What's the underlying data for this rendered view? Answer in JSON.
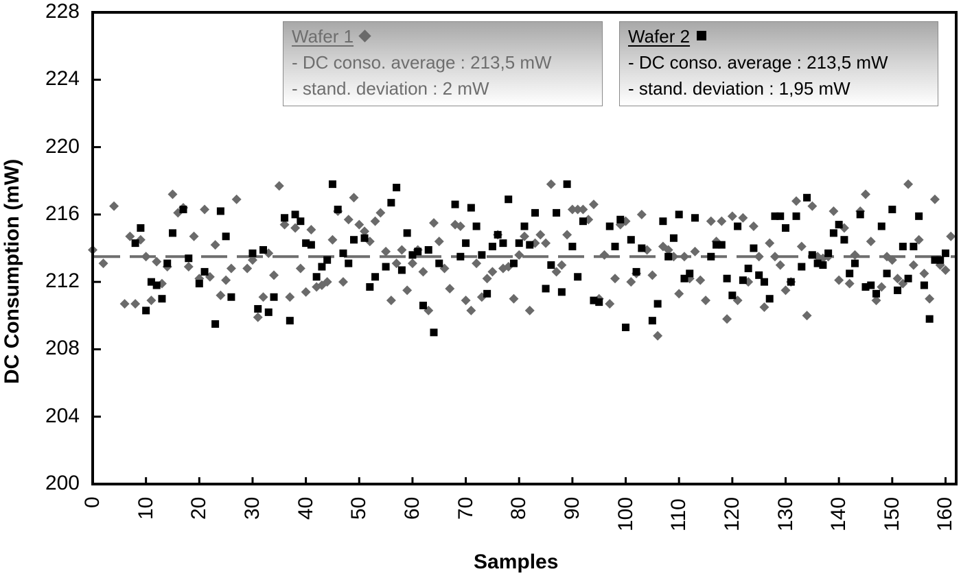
{
  "chart_data": {
    "type": "scatter",
    "title": "",
    "xlabel": "Samples",
    "ylabel": "DC Consumption (mW)",
    "xlim": [
      0,
      162
    ],
    "ylim": [
      200,
      228
    ],
    "x_ticks": [
      0,
      10,
      20,
      30,
      40,
      50,
      60,
      70,
      80,
      90,
      100,
      110,
      120,
      130,
      140,
      150,
      160
    ],
    "y_ticks": [
      200,
      204,
      208,
      212,
      216,
      220,
      224,
      228
    ],
    "grid": false,
    "reference_line": {
      "y": 213.5,
      "style": "dashed",
      "color": "#6e6e6e",
      "label": "average 213,5 mW"
    },
    "legend": [
      {
        "title": "Wafer 1",
        "marker": "diamond",
        "color": "#6a6a6a",
        "lines": [
          "- DC conso. average : 213,5 mW",
          "- stand. deviation : 2 mW"
        ]
      },
      {
        "title": "Wafer 2",
        "marker": "square",
        "color": "#000000",
        "lines": [
          "- DC conso. average : 213,5 mW",
          "- stand. deviation : 1,95 mW"
        ]
      }
    ],
    "series": [
      {
        "name": "Wafer 1",
        "marker": "diamond",
        "color": "#6a6a6a",
        "points": [
          [
            0,
            213.9
          ],
          [
            2,
            213.1
          ],
          [
            4,
            216.5
          ],
          [
            6,
            210.7
          ],
          [
            7,
            214.7
          ],
          [
            8,
            210.7
          ],
          [
            9,
            214.5
          ],
          [
            10,
            213.5
          ],
          [
            11,
            210.9
          ],
          [
            12,
            213.2
          ],
          [
            13,
            211.9
          ],
          [
            14,
            212.9
          ],
          [
            15,
            217.2
          ],
          [
            16,
            216.1
          ],
          [
            17,
            216.4
          ],
          [
            18,
            212.9
          ],
          [
            19,
            214.7
          ],
          [
            20,
            212.2
          ],
          [
            21,
            216.3
          ],
          [
            22,
            212.3
          ],
          [
            23,
            214.2
          ],
          [
            24,
            211.2
          ],
          [
            25,
            212.1
          ],
          [
            26,
            212.8
          ],
          [
            27,
            216.9
          ],
          [
            29,
            212.8
          ],
          [
            30,
            213.3
          ],
          [
            31,
            209.9
          ],
          [
            32,
            211.1
          ],
          [
            33,
            213.7
          ],
          [
            34,
            212.4
          ],
          [
            35,
            217.7
          ],
          [
            36,
            215.4
          ],
          [
            37,
            211.1
          ],
          [
            38,
            215.2
          ],
          [
            39,
            212.8
          ],
          [
            40,
            211.4
          ],
          [
            41,
            215.1
          ],
          [
            42,
            211.7
          ],
          [
            43,
            211.8
          ],
          [
            44,
            212.0
          ],
          [
            45,
            214.5
          ],
          [
            46,
            216.2
          ],
          [
            47,
            212.0
          ],
          [
            48,
            215.7
          ],
          [
            49,
            217.0
          ],
          [
            50,
            215.4
          ],
          [
            51,
            215.0
          ],
          [
            52,
            214.4
          ],
          [
            53,
            215.6
          ],
          [
            54,
            216.1
          ],
          [
            55,
            213.8
          ],
          [
            56,
            210.9
          ],
          [
            57,
            213.1
          ],
          [
            58,
            213.9
          ],
          [
            59,
            211.5
          ],
          [
            60,
            213.1
          ],
          [
            61,
            213.9
          ],
          [
            62,
            212.6
          ],
          [
            63,
            210.3
          ],
          [
            64,
            215.5
          ],
          [
            65,
            214.4
          ],
          [
            66,
            212.8
          ],
          [
            67,
            211.6
          ],
          [
            68,
            215.4
          ],
          [
            69,
            215.3
          ],
          [
            70,
            210.9
          ],
          [
            71,
            210.3
          ],
          [
            72,
            213.1
          ],
          [
            73,
            211.1
          ],
          [
            74,
            212.2
          ],
          [
            75,
            212.6
          ],
          [
            76,
            214.8
          ],
          [
            77,
            212.8
          ],
          [
            78,
            212.9
          ],
          [
            79,
            211.0
          ],
          [
            80,
            213.6
          ],
          [
            81,
            214.7
          ],
          [
            82,
            210.3
          ],
          [
            83,
            214.3
          ],
          [
            84,
            214.8
          ],
          [
            85,
            214.3
          ],
          [
            86,
            217.8
          ],
          [
            87,
            212.6
          ],
          [
            88,
            213.0
          ],
          [
            89,
            214.8
          ],
          [
            90,
            216.3
          ],
          [
            91,
            216.3
          ],
          [
            92,
            216.3
          ],
          [
            93,
            215.7
          ],
          [
            94,
            216.6
          ],
          [
            95,
            211.0
          ],
          [
            96,
            213.6
          ],
          [
            97,
            210.7
          ],
          [
            98,
            212.2
          ],
          [
            99,
            215.4
          ],
          [
            100,
            215.6
          ],
          [
            101,
            212.0
          ],
          [
            102,
            212.5
          ],
          [
            103,
            216.0
          ],
          [
            104,
            213.9
          ],
          [
            105,
            212.4
          ],
          [
            106,
            208.8
          ],
          [
            107,
            214.1
          ],
          [
            108,
            213.9
          ],
          [
            109,
            213.5
          ],
          [
            110,
            211.3
          ],
          [
            111,
            213.5
          ],
          [
            112,
            212.2
          ],
          [
            113,
            213.8
          ],
          [
            114,
            212.1
          ],
          [
            115,
            210.9
          ],
          [
            116,
            215.6
          ],
          [
            117,
            214.4
          ],
          [
            118,
            215.6
          ],
          [
            119,
            209.8
          ],
          [
            120,
            215.9
          ],
          [
            121,
            210.9
          ],
          [
            122,
            215.8
          ],
          [
            123,
            212.0
          ],
          [
            124,
            215.3
          ],
          [
            125,
            213.5
          ],
          [
            126,
            210.5
          ],
          [
            127,
            214.3
          ],
          [
            128,
            213.5
          ],
          [
            129,
            213.0
          ],
          [
            130,
            211.5
          ],
          [
            131,
            212.0
          ],
          [
            132,
            216.8
          ],
          [
            133,
            214.1
          ],
          [
            134,
            210.0
          ],
          [
            135,
            216.5
          ],
          [
            136,
            213.5
          ],
          [
            137,
            213.4
          ],
          [
            138,
            213.5
          ],
          [
            139,
            216.2
          ],
          [
            140,
            212.1
          ],
          [
            141,
            215.2
          ],
          [
            142,
            211.9
          ],
          [
            143,
            213.6
          ],
          [
            144,
            216.2
          ],
          [
            145,
            217.2
          ],
          [
            146,
            214.4
          ],
          [
            147,
            210.9
          ],
          [
            148,
            211.7
          ],
          [
            149,
            213.5
          ],
          [
            150,
            213.3
          ],
          [
            151,
            212.2
          ],
          [
            152,
            211.9
          ],
          [
            153,
            217.8
          ],
          [
            154,
            213.0
          ],
          [
            155,
            214.5
          ],
          [
            156,
            212.5
          ],
          [
            157,
            211.0
          ],
          [
            158,
            216.9
          ],
          [
            159,
            213.0
          ],
          [
            160,
            212.7
          ],
          [
            161,
            214.7
          ]
        ]
      },
      {
        "name": "Wafer 2",
        "marker": "square",
        "color": "#000000",
        "points": [
          [
            8,
            214.3
          ],
          [
            9,
            215.2
          ],
          [
            10,
            210.3
          ],
          [
            11,
            212.0
          ],
          [
            12,
            211.8
          ],
          [
            13,
            211.0
          ],
          [
            14,
            213.1
          ],
          [
            15,
            214.9
          ],
          [
            17,
            216.3
          ],
          [
            18,
            213.4
          ],
          [
            20,
            211.9
          ],
          [
            21,
            212.6
          ],
          [
            23,
            209.5
          ],
          [
            24,
            216.2
          ],
          [
            25,
            214.7
          ],
          [
            26,
            211.1
          ],
          [
            30,
            213.7
          ],
          [
            31,
            210.4
          ],
          [
            32,
            213.9
          ],
          [
            33,
            210.2
          ],
          [
            34,
            211.1
          ],
          [
            36,
            215.8
          ],
          [
            37,
            209.7
          ],
          [
            38,
            216.0
          ],
          [
            39,
            215.6
          ],
          [
            40,
            214.3
          ],
          [
            41,
            214.2
          ],
          [
            42,
            212.3
          ],
          [
            43,
            212.9
          ],
          [
            44,
            213.3
          ],
          [
            45,
            217.8
          ],
          [
            46,
            216.3
          ],
          [
            47,
            213.7
          ],
          [
            48,
            213.1
          ],
          [
            49,
            214.5
          ],
          [
            51,
            214.6
          ],
          [
            52,
            211.7
          ],
          [
            53,
            212.3
          ],
          [
            55,
            212.9
          ],
          [
            56,
            216.7
          ],
          [
            57,
            217.6
          ],
          [
            58,
            212.7
          ],
          [
            59,
            214.9
          ],
          [
            60,
            213.6
          ],
          [
            61,
            213.8
          ],
          [
            62,
            210.6
          ],
          [
            63,
            213.9
          ],
          [
            64,
            209.0
          ],
          [
            65,
            213.1
          ],
          [
            68,
            216.6
          ],
          [
            69,
            213.5
          ],
          [
            70,
            214.3
          ],
          [
            71,
            216.4
          ],
          [
            72,
            215.3
          ],
          [
            73,
            213.6
          ],
          [
            74,
            211.3
          ],
          [
            75,
            214.1
          ],
          [
            76,
            214.8
          ],
          [
            77,
            214.3
          ],
          [
            78,
            216.9
          ],
          [
            79,
            213.1
          ],
          [
            80,
            214.3
          ],
          [
            81,
            215.3
          ],
          [
            82,
            214.2
          ],
          [
            83,
            216.1
          ],
          [
            85,
            211.6
          ],
          [
            86,
            213.0
          ],
          [
            87,
            216.1
          ],
          [
            88,
            211.4
          ],
          [
            89,
            217.8
          ],
          [
            90,
            214.1
          ],
          [
            91,
            212.3
          ],
          [
            92,
            215.6
          ],
          [
            94,
            210.9
          ],
          [
            95,
            210.8
          ],
          [
            97,
            215.3
          ],
          [
            98,
            214.1
          ],
          [
            99,
            215.7
          ],
          [
            100,
            209.3
          ],
          [
            101,
            214.5
          ],
          [
            102,
            212.6
          ],
          [
            103,
            214.0
          ],
          [
            105,
            209.7
          ],
          [
            106,
            210.7
          ],
          [
            107,
            215.6
          ],
          [
            108,
            213.5
          ],
          [
            109,
            214.6
          ],
          [
            110,
            216.0
          ],
          [
            111,
            212.2
          ],
          [
            112,
            212.5
          ],
          [
            113,
            215.8
          ],
          [
            116,
            213.5
          ],
          [
            117,
            214.2
          ],
          [
            118,
            214.2
          ],
          [
            119,
            212.2
          ],
          [
            120,
            211.2
          ],
          [
            121,
            215.3
          ],
          [
            122,
            212.1
          ],
          [
            123,
            212.8
          ],
          [
            124,
            214.0
          ],
          [
            125,
            212.4
          ],
          [
            126,
            212.0
          ],
          [
            127,
            211.0
          ],
          [
            128,
            215.9
          ],
          [
            129,
            215.9
          ],
          [
            130,
            215.2
          ],
          [
            131,
            212.0
          ],
          [
            132,
            215.9
          ],
          [
            133,
            212.9
          ],
          [
            134,
            217.0
          ],
          [
            135,
            213.6
          ],
          [
            136,
            213.1
          ],
          [
            137,
            213.0
          ],
          [
            138,
            213.7
          ],
          [
            139,
            214.9
          ],
          [
            140,
            215.4
          ],
          [
            141,
            214.5
          ],
          [
            142,
            212.5
          ],
          [
            143,
            213.1
          ],
          [
            144,
            216.0
          ],
          [
            145,
            211.7
          ],
          [
            146,
            211.8
          ],
          [
            147,
            211.3
          ],
          [
            148,
            215.3
          ],
          [
            149,
            212.5
          ],
          [
            150,
            216.3
          ],
          [
            151,
            211.5
          ],
          [
            152,
            214.1
          ],
          [
            153,
            212.2
          ],
          [
            154,
            214.1
          ],
          [
            155,
            215.9
          ],
          [
            156,
            211.8
          ],
          [
            157,
            209.8
          ],
          [
            158,
            213.3
          ],
          [
            159,
            213.3
          ],
          [
            160,
            213.7
          ]
        ]
      }
    ]
  },
  "legend": {
    "wafer1": {
      "title": "Wafer 1",
      "line1": "- DC conso. average : 213,5 mW",
      "line2": "- stand. deviation : 2 mW"
    },
    "wafer2": {
      "title": "Wafer 2",
      "line1": "- DC conso. average : 213,5 mW",
      "line2": "- stand. deviation : 1,95 mW"
    }
  },
  "axes": {
    "x_title": "Samples",
    "y_title": "DC Consumption (mW)"
  }
}
